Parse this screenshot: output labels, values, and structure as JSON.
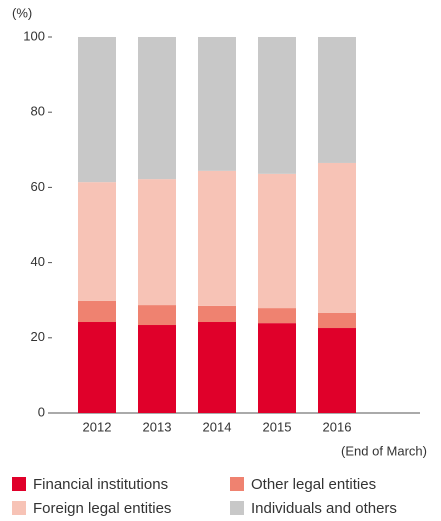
{
  "chart_data": {
    "type": "stacked_bar",
    "unit_label": "(%)",
    "note": "(End of March)",
    "categories": [
      "2012",
      "2013",
      "2014",
      "2015",
      "2016"
    ],
    "series": [
      {
        "name": "Financial institutions",
        "color": "#e0002a",
        "values": [
          24.2,
          23.4,
          24.2,
          23.9,
          22.6
        ]
      },
      {
        "name": "Other legal entities",
        "color": "#ef8270",
        "values": [
          5.6,
          5.3,
          4.3,
          4.0,
          4.0
        ]
      },
      {
        "name": "Foreign legal entities",
        "color": "#f7c3b6",
        "values": [
          31.6,
          33.5,
          35.9,
          35.7,
          39.9
        ]
      },
      {
        "name": "Individuals and others",
        "color": "#c8c8c8",
        "values": [
          38.6,
          37.8,
          35.6,
          36.4,
          33.5
        ]
      }
    ],
    "ylim": [
      0,
      100
    ],
    "yticks": [
      0,
      20,
      40,
      60,
      80,
      100
    ]
  }
}
